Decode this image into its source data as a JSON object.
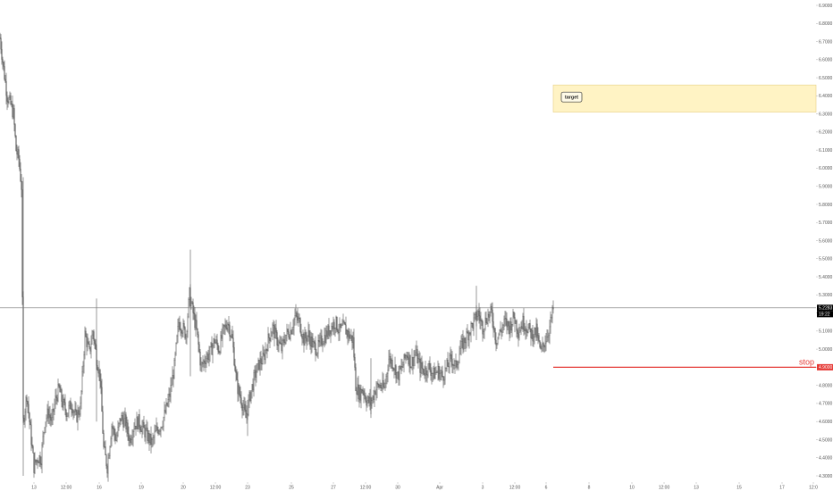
{
  "chart_data": {
    "type": "candlestick",
    "y_axis": {
      "range": [
        4.26,
        6.96
      ],
      "ticks": [
        "6.9000",
        "6.8000",
        "6.7000",
        "6.6000",
        "6.5000",
        "6.4000",
        "6.3000",
        "6.2000",
        "6.1000",
        "6.0000",
        "5.9000",
        "5.8000",
        "5.7000",
        "5.6000",
        "5.5000",
        "5.4000",
        "5.3000",
        "5.2000",
        "5.1000",
        "5.0000",
        "4.9000",
        "4.8000",
        "4.7000",
        "4.6000",
        "4.5000",
        "4.4000",
        "4.3000"
      ]
    },
    "x_axis": {
      "ticks": [
        "13",
        "12:00",
        "16",
        "19",
        "20",
        "12:00",
        "23",
        "25",
        "27",
        "12:00",
        "30",
        "Apr",
        "3",
        "12:00",
        "6",
        "8",
        "10",
        "12:00",
        "13",
        "15",
        "17",
        "12:0"
      ]
    },
    "price_path": [
      {
        "t": 0,
        "p": 6.72
      },
      {
        "t": 4,
        "p": 6.55
      },
      {
        "t": 8,
        "p": 6.4
      },
      {
        "t": 12,
        "p": 6.35
      },
      {
        "t": 15,
        "p": 6.3
      },
      {
        "t": 18,
        "p": 6.1
      },
      {
        "t": 21,
        "p": 6.05
      },
      {
        "t": 24,
        "p": 5.9
      },
      {
        "t": 26,
        "p": 4.6
      },
      {
        "t": 30,
        "p": 4.75
      },
      {
        "t": 34,
        "p": 4.55
      },
      {
        "t": 38,
        "p": 4.35
      },
      {
        "t": 42,
        "p": 4.4
      },
      {
        "t": 46,
        "p": 4.4
      },
      {
        "t": 50,
        "p": 4.6
      },
      {
        "t": 54,
        "p": 4.65
      },
      {
        "t": 58,
        "p": 4.6
      },
      {
        "t": 62,
        "p": 4.72
      },
      {
        "t": 66,
        "p": 4.78
      },
      {
        "t": 70,
        "p": 4.7
      },
      {
        "t": 75,
        "p": 4.65
      },
      {
        "t": 80,
        "p": 4.7
      },
      {
        "t": 85,
        "p": 4.62
      },
      {
        "t": 90,
        "p": 4.68
      },
      {
        "t": 95,
        "p": 5.08
      },
      {
        "t": 100,
        "p": 4.98
      },
      {
        "t": 104,
        "p": 5.1
      },
      {
        "t": 108,
        "p": 4.95
      },
      {
        "t": 112,
        "p": 4.85
      },
      {
        "t": 116,
        "p": 4.45
      },
      {
        "t": 120,
        "p": 4.35
      },
      {
        "t": 125,
        "p": 4.58
      },
      {
        "t": 130,
        "p": 4.5
      },
      {
        "t": 135,
        "p": 4.62
      },
      {
        "t": 140,
        "p": 4.6
      },
      {
        "t": 145,
        "p": 4.5
      },
      {
        "t": 150,
        "p": 4.58
      },
      {
        "t": 155,
        "p": 4.6
      },
      {
        "t": 160,
        "p": 4.56
      },
      {
        "t": 165,
        "p": 4.52
      },
      {
        "t": 170,
        "p": 4.48
      },
      {
        "t": 175,
        "p": 4.55
      },
      {
        "t": 180,
        "p": 4.58
      },
      {
        "t": 185,
        "p": 4.65
      },
      {
        "t": 190,
        "p": 4.75
      },
      {
        "t": 195,
        "p": 4.9
      },
      {
        "t": 200,
        "p": 5.15
      },
      {
        "t": 204,
        "p": 5.12
      },
      {
        "t": 208,
        "p": 5.08
      },
      {
        "t": 212,
        "p": 5.3
      },
      {
        "t": 216,
        "p": 5.2
      },
      {
        "t": 220,
        "p": 5.1
      },
      {
        "t": 225,
        "p": 4.9
      },
      {
        "t": 230,
        "p": 4.95
      },
      {
        "t": 235,
        "p": 4.98
      },
      {
        "t": 240,
        "p": 5.05
      },
      {
        "t": 245,
        "p": 5.0
      },
      {
        "t": 250,
        "p": 5.1
      },
      {
        "t": 255,
        "p": 5.15
      },
      {
        "t": 260,
        "p": 5.05
      },
      {
        "t": 265,
        "p": 4.8
      },
      {
        "t": 270,
        "p": 4.72
      },
      {
        "t": 275,
        "p": 4.62
      },
      {
        "t": 280,
        "p": 4.75
      },
      {
        "t": 285,
        "p": 4.85
      },
      {
        "t": 290,
        "p": 4.92
      },
      {
        "t": 295,
        "p": 4.95
      },
      {
        "t": 300,
        "p": 5.05
      },
      {
        "t": 305,
        "p": 5.12
      },
      {
        "t": 310,
        "p": 5.05
      },
      {
        "t": 315,
        "p": 5.0
      },
      {
        "t": 320,
        "p": 5.08
      },
      {
        "t": 325,
        "p": 5.1
      },
      {
        "t": 330,
        "p": 5.18
      },
      {
        "t": 335,
        "p": 5.15
      },
      {
        "t": 340,
        "p": 5.05
      },
      {
        "t": 345,
        "p": 5.08
      },
      {
        "t": 350,
        "p": 5.02
      },
      {
        "t": 355,
        "p": 5.0
      },
      {
        "t": 360,
        "p": 5.05
      },
      {
        "t": 365,
        "p": 5.08
      },
      {
        "t": 370,
        "p": 5.12
      },
      {
        "t": 375,
        "p": 5.15
      },
      {
        "t": 380,
        "p": 5.1
      },
      {
        "t": 385,
        "p": 5.12
      },
      {
        "t": 390,
        "p": 5.08
      },
      {
        "t": 395,
        "p": 5.05
      },
      {
        "t": 398,
        "p": 4.8
      },
      {
        "t": 402,
        "p": 4.75
      },
      {
        "t": 406,
        "p": 4.78
      },
      {
        "t": 410,
        "p": 4.72
      },
      {
        "t": 415,
        "p": 4.7
      },
      {
        "t": 420,
        "p": 4.78
      },
      {
        "t": 425,
        "p": 4.8
      },
      {
        "t": 430,
        "p": 4.78
      },
      {
        "t": 435,
        "p": 4.95
      },
      {
        "t": 440,
        "p": 4.92
      },
      {
        "t": 445,
        "p": 4.85
      },
      {
        "t": 450,
        "p": 4.9
      },
      {
        "t": 455,
        "p": 4.98
      },
      {
        "t": 460,
        "p": 4.92
      },
      {
        "t": 465,
        "p": 4.98
      },
      {
        "t": 470,
        "p": 4.9
      },
      {
        "t": 475,
        "p": 4.88
      },
      {
        "t": 480,
        "p": 4.9
      },
      {
        "t": 485,
        "p": 4.86
      },
      {
        "t": 490,
        "p": 4.88
      },
      {
        "t": 495,
        "p": 4.85
      },
      {
        "t": 500,
        "p": 4.9
      },
      {
        "t": 505,
        "p": 4.95
      },
      {
        "t": 510,
        "p": 4.9
      },
      {
        "t": 515,
        "p": 5.0
      },
      {
        "t": 520,
        "p": 5.05
      },
      {
        "t": 525,
        "p": 5.1
      },
      {
        "t": 530,
        "p": 5.15
      },
      {
        "t": 535,
        "p": 5.2
      },
      {
        "t": 540,
        "p": 5.12
      },
      {
        "t": 545,
        "p": 5.18
      },
      {
        "t": 550,
        "p": 5.2
      },
      {
        "t": 555,
        "p": 5.05
      },
      {
        "t": 560,
        "p": 5.1
      },
      {
        "t": 565,
        "p": 5.15
      },
      {
        "t": 570,
        "p": 5.12
      },
      {
        "t": 575,
        "p": 5.18
      },
      {
        "t": 580,
        "p": 5.1
      },
      {
        "t": 585,
        "p": 5.15
      },
      {
        "t": 590,
        "p": 5.12
      },
      {
        "t": 595,
        "p": 5.08
      },
      {
        "t": 600,
        "p": 5.1
      },
      {
        "t": 605,
        "p": 4.98
      },
      {
        "t": 610,
        "p": 5.05
      },
      {
        "t": 615,
        "p": 5.12
      },
      {
        "t": 619,
        "p": 5.22
      }
    ],
    "last_price": "5.2283",
    "countdown": "19:22",
    "horizontal_line": 5.2283,
    "stop": {
      "label": "stop",
      "value": 4.9,
      "tag": "4.9000",
      "color": "#e53935"
    },
    "target": {
      "label": "target",
      "low": 6.31,
      "high": 6.46,
      "color": "#fff3c4"
    },
    "colors": {
      "candle": "#555555",
      "axis_text": "#555555",
      "tag_bg": "#000000"
    }
  }
}
